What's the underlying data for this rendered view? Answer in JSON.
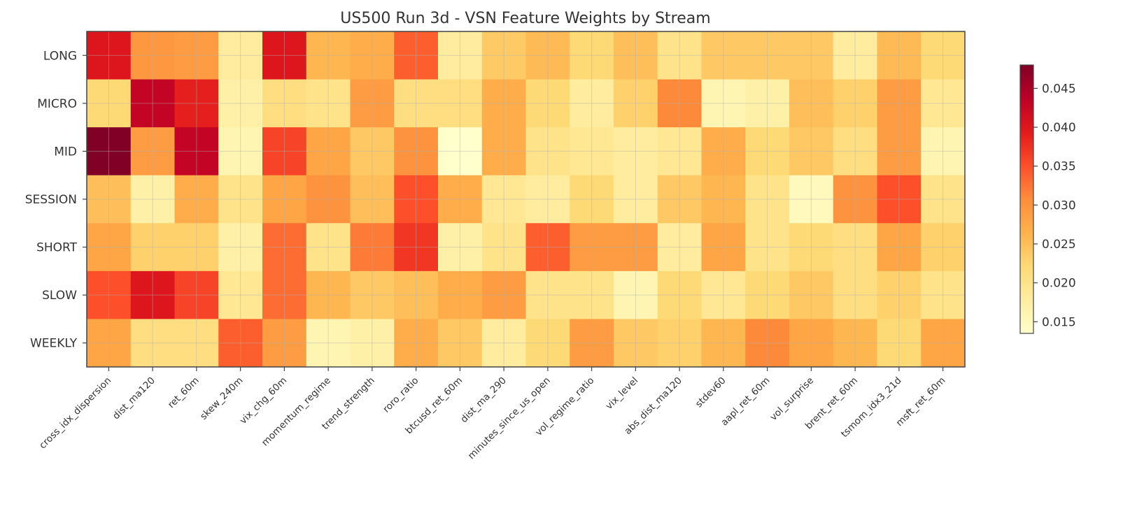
{
  "chart_data": {
    "type": "heatmap",
    "title": "US500 Run 3d - VSN Feature Weights by Stream",
    "colormap": "YlOrRd",
    "grid": true,
    "colorbar": {
      "range": [
        0.0135,
        0.048
      ],
      "ticks": [
        "0.015",
        "0.020",
        "0.025",
        "0.030",
        "0.035",
        "0.040",
        "0.045"
      ],
      "placement": "right"
    },
    "rows": [
      "LONG",
      "MICRO",
      "MID",
      "SESSION",
      "SHORT",
      "SLOW",
      "WEEKLY"
    ],
    "columns": [
      "cross_idx_dispersion",
      "dist_ma120",
      "ret_60m",
      "skew_240m",
      "vix_chg_60m",
      "momentum_regime",
      "trend_strength",
      "roro_ratio",
      "btcusd_ret_60m",
      "dist_ma_290",
      "minutes_since_us_open",
      "vol_regime_ratio",
      "vix_level",
      "abs_dist_ma120",
      "stdev60",
      "aapl_ret_60m",
      "vol_surprise",
      "brent_ret_60m",
      "tsmom_idx3_21d",
      "msft_ret_60m"
    ],
    "values": [
      [
        0.04,
        0.0295,
        0.029,
        0.018,
        0.04,
        0.026,
        0.027,
        0.034,
        0.018,
        0.0238,
        0.0255,
        0.022,
        0.025,
        0.02,
        0.024,
        0.024,
        0.024,
        0.018,
        0.0255,
        0.022
      ],
      [
        0.022,
        0.043,
        0.039,
        0.017,
        0.021,
        0.02,
        0.029,
        0.021,
        0.021,
        0.027,
        0.022,
        0.018,
        0.023,
        0.031,
        0.016,
        0.017,
        0.025,
        0.023,
        0.029,
        0.019
      ],
      [
        0.048,
        0.029,
        0.043,
        0.016,
        0.036,
        0.028,
        0.024,
        0.03,
        0.0135,
        0.027,
        0.02,
        0.019,
        0.018,
        0.019,
        0.027,
        0.022,
        0.024,
        0.021,
        0.029,
        0.016
      ],
      [
        0.025,
        0.017,
        0.027,
        0.02,
        0.028,
        0.03,
        0.025,
        0.035,
        0.027,
        0.019,
        0.018,
        0.022,
        0.018,
        0.024,
        0.026,
        0.02,
        0.015,
        0.03,
        0.035,
        0.02
      ],
      [
        0.028,
        0.023,
        0.023,
        0.017,
        0.033,
        0.02,
        0.032,
        0.037,
        0.017,
        0.02,
        0.034,
        0.029,
        0.029,
        0.018,
        0.028,
        0.02,
        0.022,
        0.021,
        0.028,
        0.023
      ],
      [
        0.035,
        0.04,
        0.036,
        0.019,
        0.033,
        0.026,
        0.024,
        0.025,
        0.027,
        0.029,
        0.02,
        0.02,
        0.016,
        0.022,
        0.019,
        0.022,
        0.024,
        0.021,
        0.023,
        0.02
      ],
      [
        0.028,
        0.021,
        0.021,
        0.034,
        0.029,
        0.016,
        0.017,
        0.027,
        0.024,
        0.018,
        0.022,
        0.029,
        0.024,
        0.023,
        0.026,
        0.031,
        0.028,
        0.026,
        0.022,
        0.028
      ]
    ]
  }
}
